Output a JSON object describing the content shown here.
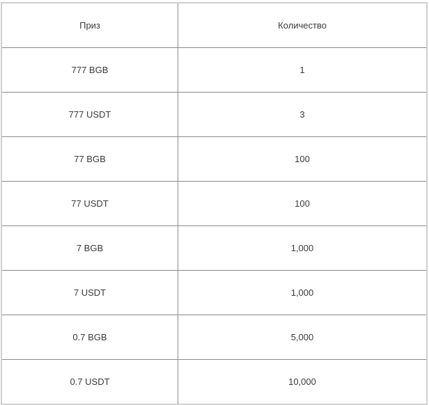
{
  "table": {
    "headers": [
      "Приз",
      "Количество"
    ],
    "rows": [
      [
        "777 BGB",
        "1"
      ],
      [
        "777 USDT",
        "3"
      ],
      [
        "77 BGB",
        "100"
      ],
      [
        "77 USDT",
        "100"
      ],
      [
        "7 BGB",
        "1,000"
      ],
      [
        "7 USDT",
        "1,000"
      ],
      [
        "0.7 BGB",
        "5,000"
      ],
      [
        "0.7 USDT",
        "10,000"
      ]
    ]
  }
}
